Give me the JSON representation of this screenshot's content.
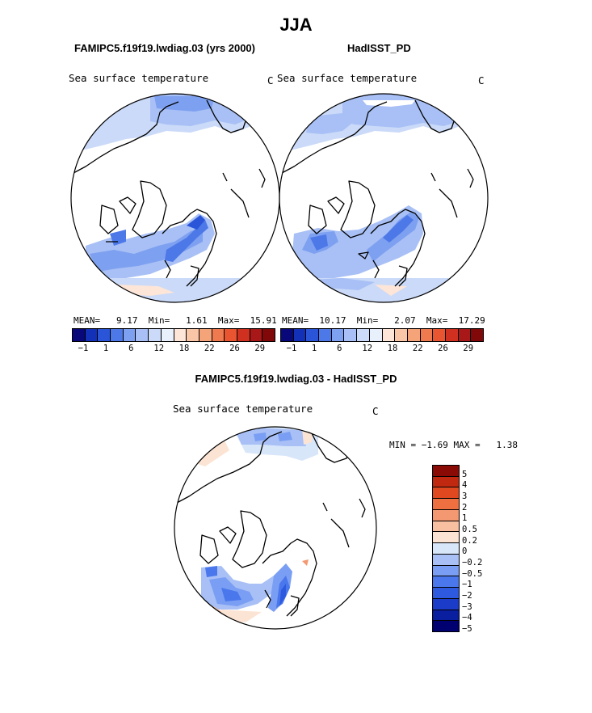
{
  "title": "JJA",
  "colors": {
    "abs_scale": [
      "#08087a",
      "#1230b8",
      "#2a55d8",
      "#4d78e8",
      "#7ea0f0",
      "#a8c0f5",
      "#cadaf8",
      "#e8f0fc",
      "#fde5d8",
      "#f9c7a8",
      "#f5a378",
      "#f07a50",
      "#e85530",
      "#d03020",
      "#a81818",
      "#800808"
    ],
    "diff_scale": [
      "#000070",
      "#0a1ea0",
      "#1a3cc8",
      "#2e5ae0",
      "#4a78ec",
      "#7a9ef3",
      "#a8c0f6",
      "#d8e6fa",
      "#fce4d4",
      "#f8c0a0",
      "#f39870",
      "#ee7040",
      "#e04820",
      "#c02810",
      "#8a0a05"
    ],
    "ocean_light": "#b9cef5",
    "ocean_mid": "#8ba9f0",
    "ocean_dark": "#4d74e6",
    "warm_light": "#fbe0d0"
  },
  "maps": [
    {
      "name": "model",
      "subtitle": "FAMIPC5.f19f19.lwdiag.03 (yrs 2000)",
      "variable": "Sea surface temperature",
      "units": "C",
      "stats": {
        "mean_label": "MEAN=",
        "mean": "9.17",
        "min_label": "Min=",
        "min": "1.61",
        "max_label": "Max=",
        "max": "15.91"
      },
      "ticks": [
        "−1",
        "1",
        "6",
        "12",
        "18",
        "22",
        "26",
        "29"
      ]
    },
    {
      "name": "obs",
      "subtitle": "HadISST_PD",
      "variable": "Sea surface temperature",
      "units": "C",
      "stats": {
        "mean_label": "MEAN=",
        "mean": "10.17",
        "min_label": "Min=",
        "min": "2.07",
        "max_label": "Max=",
        "max": "17.29"
      },
      "ticks": [
        "−1",
        "1",
        "6",
        "12",
        "18",
        "22",
        "26",
        "29"
      ]
    }
  ],
  "diff": {
    "subtitle": "FAMIPC5.f19f19.lwdiag.03 - HadISST_PD",
    "variable": "Sea surface temperature",
    "units": "C",
    "stats": {
      "min_label": "MIN =",
      "min": "−1.69",
      "max_label": "MAX =",
      "max": "1.38"
    },
    "legend_labels": [
      "5",
      "4",
      "3",
      "2",
      "1",
      "0.5",
      "0.2",
      "0",
      "−0.2",
      "−0.5",
      "−1",
      "−2",
      "−3",
      "−4",
      "−5"
    ]
  }
}
